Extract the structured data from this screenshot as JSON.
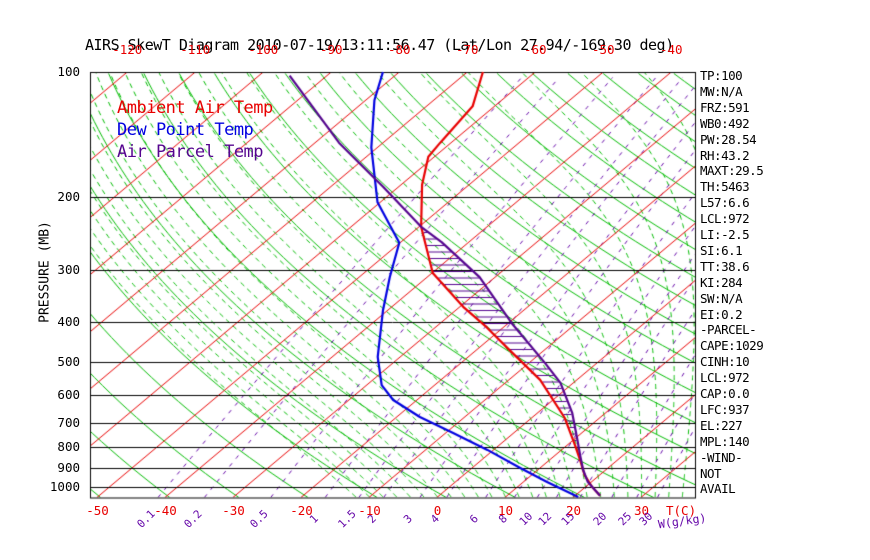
{
  "title": "AIRS SkewT Diagram 2010-07-19/13:11:56.47 (Lat/Lon 27.94/-169.30 deg)",
  "legend": {
    "ambient": "Ambient Air Temp",
    "dew": "Dew Point Temp",
    "parcel": "Air Parcel Temp"
  },
  "axes": {
    "pressure_label": "PRESSURE (MB)",
    "temp_unit_label": "T(C)",
    "mixing_unit_label": "W(g/kg)",
    "pressure_ticks": [
      100,
      200,
      300,
      400,
      500,
      600,
      700,
      800,
      900,
      1000
    ],
    "top_temp_ticks": [
      -120,
      -110,
      -100,
      -90,
      -80,
      -70,
      -60,
      -50,
      -40
    ],
    "bottom_temp_ticks": [
      -50,
      -40,
      -30,
      -20,
      -10,
      0,
      10,
      20,
      30
    ],
    "mixing_ratio_ticks": [
      "0.1",
      "0.2",
      "0.5",
      "1",
      "1.5",
      "2",
      "3",
      "4",
      "6",
      "8",
      "10",
      "12",
      "15",
      "20",
      "25",
      "30"
    ]
  },
  "stats_panel": {
    "lines": [
      "TP:100",
      "MW:N/A",
      "FRZ:591",
      "WB0:492",
      "PW:28.54",
      "RH:43.2",
      "MAXT:29.5",
      "TH:5463",
      "L57:6.6",
      "LCL:972",
      "LI:-2.5",
      "SI:6.1",
      "TT:38.6",
      "KI:284",
      "SW:N/A",
      "EI:0.2",
      "-PARCEL-",
      "CAPE:1029",
      "CINH:10",
      "LCL:972",
      "CAP:0.0",
      "LFC:937",
      "EL:227",
      "MPL:140",
      "-WIND-",
      "NOT",
      "AVAIL"
    ]
  },
  "colors": {
    "isotherm": "#e80000",
    "adiabat": "#00bb00",
    "mixing": "#6609a9",
    "pressure_grid": "#000000",
    "ambient": "#e80000",
    "dew": "#0000e0",
    "parcel": "#55058f",
    "hatch": "#55058f"
  },
  "chart_data": {
    "type": "skewt-log-p",
    "title": "AIRS SkewT Diagram 2010-07-19/13:11:56.47 (Lat/Lon 27.94/-169.30 deg)",
    "pressure_axis_mb": {
      "min": 100,
      "max": 1057,
      "gridlines": [
        100,
        200,
        300,
        400,
        500,
        600,
        700,
        800,
        900,
        1000
      ]
    },
    "temp_axis_c": {
      "bottom_labels": [
        -50,
        -40,
        -30,
        -20,
        -10,
        0,
        10,
        20,
        30
      ],
      "top_labels": [
        -120,
        -110,
        -100,
        -90,
        -80,
        -70,
        -60,
        -50,
        -40
      ],
      "isotherm_step": 10
    },
    "dry_adiabats_theta_k": {
      "min": 210,
      "max": 460,
      "step": 10
    },
    "moist_adiabats_surface_t_c": {
      "min": -12,
      "max": 38,
      "step": 2
    },
    "mixing_ratio_lines_g_kg": [
      0.1,
      0.2,
      0.5,
      1,
      1.5,
      2,
      3,
      4,
      6,
      8,
      10,
      12,
      15,
      20,
      25,
      30
    ],
    "soundings": {
      "ambient_temp": {
        "name": "Ambient Air Temp",
        "points_p_t": [
          [
            100,
            -67.7
          ],
          [
            121,
            -63.2
          ],
          [
            148,
            -61.6
          ],
          [
            160,
            -60.9
          ],
          [
            187,
            -56.9
          ],
          [
            236,
            -49.7
          ],
          [
            305,
            -39.9
          ],
          [
            368,
            -29.5
          ],
          [
            412,
            -22.5
          ],
          [
            468,
            -15.1
          ],
          [
            552,
            -5.4
          ],
          [
            682,
            4.9
          ],
          [
            792,
            11.1
          ],
          [
            861,
            14.5
          ],
          [
            936,
            17.8
          ],
          [
            1000,
            21.0
          ],
          [
            1050,
            23.7
          ]
        ]
      },
      "dew_point": {
        "name": "Dew Point Temp",
        "points_p_t": [
          [
            100,
            -82.4
          ],
          [
            117,
            -78.7
          ],
          [
            152,
            -70.9
          ],
          [
            206,
            -60.4
          ],
          [
            258,
            -50.1
          ],
          [
            312,
            -45.5
          ],
          [
            375,
            -40.7
          ],
          [
            486,
            -33.3
          ],
          [
            568,
            -27.8
          ],
          [
            617,
            -23.5
          ],
          [
            678,
            -16.6
          ],
          [
            741,
            -8.9
          ],
          [
            814,
            -0.9
          ],
          [
            900,
            7.1
          ],
          [
            973,
            13.5
          ],
          [
            1057,
            20.7
          ]
        ]
      },
      "parcel_temp": {
        "name": "Air Parcel Temp",
        "points_p_t": [
          [
            102,
            -95.5
          ],
          [
            148,
            -76.5
          ],
          [
            189,
            -62.3
          ],
          [
            236,
            -49.7
          ],
          [
            257,
            -44.0
          ],
          [
            312,
            -32.3
          ],
          [
            403,
            -19.5
          ],
          [
            503,
            -7.6
          ],
          [
            561,
            -1.9
          ],
          [
            663,
            5.1
          ],
          [
            762,
            10.2
          ],
          [
            846,
            14.0
          ],
          [
            910,
            16.7
          ],
          [
            973,
            19.5
          ],
          [
            1050,
            23.7
          ]
        ]
      }
    },
    "cape_hatch_between": [
      "parcel_temp",
      "ambient_temp"
    ],
    "indices": {
      "TP": 100,
      "FRZ": 591,
      "WB0": 492,
      "PW": 28.54,
      "RH": 43.2,
      "MAXT": 29.5,
      "TH": 5463,
      "L57": 6.6,
      "LCL": 972,
      "LI": -2.5,
      "SI": 6.1,
      "TT": 38.6,
      "KI": 284,
      "EI": 0.2,
      "CAPE": 1029,
      "CINH": 10,
      "CAP": 0.0,
      "LFC": 937,
      "EL": 227,
      "MPL": 140
    }
  }
}
